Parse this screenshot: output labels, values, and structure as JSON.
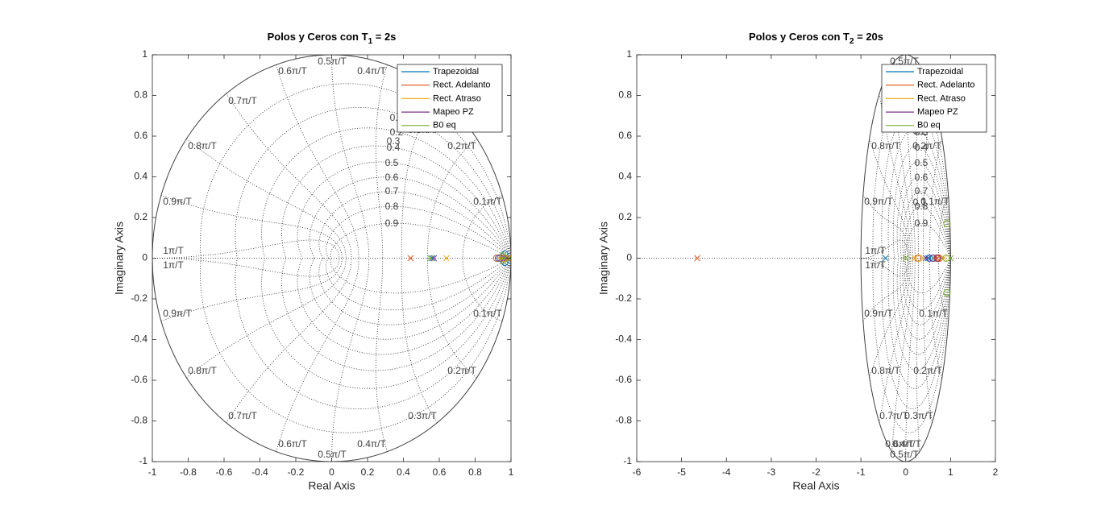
{
  "figure": {
    "background": "#ffffff"
  },
  "legend_colors": {
    "Trapezoidal": "#0072BD",
    "Rect. Adelanto": "#D95319",
    "Rect. Atraso": "#EDB120",
    "Mapeo PZ": "#7E2F8E",
    "B0 eq": "#77AC30"
  },
  "chart_data": [
    {
      "type": "pzmap",
      "title_prefix": "Polos y Ceros con T",
      "title_subscript": "1",
      "title_suffix": " = 2s",
      "xlabel": "Real Axis",
      "ylabel": "Imaginary Axis",
      "xlim": [
        -1,
        1
      ],
      "ylim": [
        -1,
        1
      ],
      "xticks": [
        -1,
        -0.8,
        -0.6,
        -0.4,
        -0.2,
        0,
        0.2,
        0.4,
        0.6,
        0.8,
        1
      ],
      "xtick_labels": [
        "-1",
        "-0.8",
        "-0.6",
        "-0.4",
        "-0.2",
        "0",
        "0.2",
        "0.4",
        "0.6",
        "0.8",
        "1"
      ],
      "yticks": [
        -1,
        -0.8,
        -0.6,
        -0.4,
        -0.2,
        0,
        0.2,
        0.4,
        0.6,
        0.8,
        1
      ],
      "ytick_labels": [
        "-1",
        "-0.8",
        "-0.6",
        "-0.4",
        "-0.2",
        "0",
        "0.2",
        "0.4",
        "0.6",
        "0.8",
        "1"
      ],
      "grid": true,
      "zeta_values": [
        0.1,
        0.2,
        0.3,
        0.4,
        0.5,
        0.6,
        0.7,
        0.8,
        0.9
      ],
      "zeta_labels": [
        "0.1",
        "0.2",
        "0.3",
        "0.4",
        "0.5",
        "0.6",
        "0.7",
        "0.8",
        "0.9"
      ],
      "wn_values": [
        0.1,
        0.2,
        0.3,
        0.4,
        0.5,
        0.6,
        0.7,
        0.8,
        0.9,
        1.0
      ],
      "wn_labels": [
        "0.1π/T",
        "0.2π/T",
        "0.3π/T",
        "0.4π/T",
        "0.5π/T",
        "0.6π/T",
        "0.7π/T",
        "0.8π/T",
        "0.9π/T",
        "1π/T"
      ],
      "legend_location": "top-right",
      "legend": [
        "Trapezoidal",
        "Rect. Adelanto",
        "Rect. Atraso",
        "Mapeo PZ",
        "B0 eq"
      ],
      "series": [
        {
          "name": "Trapezoidal",
          "poles": [
            [
              0.56,
              0
            ],
            [
              0.97,
              0.01
            ],
            [
              0.97,
              -0.01
            ]
          ],
          "zeros": [
            [
              0.93,
              0
            ],
            [
              0.965,
              0.02
            ],
            [
              0.965,
              -0.02
            ]
          ]
        },
        {
          "name": "Rect. Adelanto",
          "poles": [
            [
              0.44,
              0
            ],
            [
              0.98,
              0
            ]
          ],
          "zeros": [
            [
              0.92,
              0
            ],
            [
              0.96,
              0
            ]
          ]
        },
        {
          "name": "Rect. Atraso",
          "poles": [
            [
              0.64,
              0
            ],
            [
              0.985,
              0
            ]
          ],
          "zeros": [
            [
              0.95,
              0
            ],
            [
              0.97,
              0
            ]
          ]
        },
        {
          "name": "Mapeo PZ",
          "poles": [
            [
              0.57,
              0
            ],
            [
              0.975,
              0
            ]
          ],
          "zeros": [
            [
              0.94,
              0
            ]
          ]
        },
        {
          "name": "B0 eq",
          "poles": [
            [
              0.55,
              0
            ],
            [
              0.99,
              0
            ]
          ],
          "zeros": [
            [
              0.955,
              0.012
            ],
            [
              0.955,
              -0.012
            ]
          ]
        }
      ]
    },
    {
      "type": "pzmap",
      "title_prefix": "Polos y Ceros con T",
      "title_subscript": "2",
      "title_suffix": " = 20s",
      "xlabel": "Real Axis",
      "ylabel": "Imaginary Axis",
      "xlim": [
        -6,
        2
      ],
      "ylim": [
        -1,
        1
      ],
      "xticks": [
        -6,
        -5,
        -4,
        -3,
        -2,
        -1,
        0,
        1,
        2
      ],
      "xtick_labels": [
        "-6",
        "-5",
        "-4",
        "-3",
        "-2",
        "-1",
        "0",
        "1",
        "2"
      ],
      "yticks": [
        -1,
        -0.8,
        -0.6,
        -0.4,
        -0.2,
        0,
        0.2,
        0.4,
        0.6,
        0.8,
        1
      ],
      "ytick_labels": [
        "-1",
        "-0.8",
        "-0.6",
        "-0.4",
        "-0.2",
        "0",
        "0.2",
        "0.4",
        "0.6",
        "0.8",
        "1"
      ],
      "grid": true,
      "zeta_values": [
        0.1,
        0.2,
        0.3,
        0.4,
        0.5,
        0.6,
        0.7,
        0.8,
        0.9
      ],
      "zeta_labels": [
        "0.1",
        "0.2",
        "0.3",
        "0.4",
        "0.5",
        "0.6",
        "0.7",
        "0.8",
        "0.9"
      ],
      "wn_values": [
        0.1,
        0.2,
        0.3,
        0.4,
        0.5,
        0.6,
        0.7,
        0.8,
        0.9,
        1.0
      ],
      "wn_labels": [
        "0.1π/T",
        "0.2π/T",
        "0.3π/T",
        "0.4π/T",
        "0.5π/T",
        "0.6π/T",
        "0.7π/T",
        "0.8π/T",
        "0.9π/T",
        "1π/T"
      ],
      "legend_location": "top-right",
      "legend": [
        "Trapezoidal",
        "Rect. Adelanto",
        "Rect. Atraso",
        "Mapeo PZ",
        "B0 eq"
      ],
      "series": [
        {
          "name": "Trapezoidal",
          "poles": [
            [
              -0.45,
              0
            ],
            [
              0.5,
              0
            ]
          ],
          "zeros": [
            [
              0.52,
              0
            ],
            [
              0.62,
              0
            ]
          ]
        },
        {
          "name": "Rect. Adelanto",
          "poles": [
            [
              -4.65,
              0
            ],
            [
              0.7,
              0
            ]
          ],
          "zeros": [
            [
              0.27,
              0
            ],
            [
              0.72,
              0
            ],
            [
              0.75,
              0
            ]
          ]
        },
        {
          "name": "Rect. Atraso",
          "poles": [
            [
              0.2,
              0
            ],
            [
              0.85,
              0
            ]
          ],
          "zeros": [
            [
              0.3,
              0
            ],
            [
              0.68,
              0
            ]
          ]
        },
        {
          "name": "Mapeo PZ",
          "poles": [
            [
              0.45,
              0
            ]
          ],
          "zeros": [
            [
              0.6,
              0
            ],
            [
              0.7,
              0
            ]
          ]
        },
        {
          "name": "B0 eq",
          "poles": [
            [
              0.0,
              0
            ],
            [
              1.0,
              0
            ]
          ],
          "zeros": [
            [
              0.92,
              0.17
            ],
            [
              0.92,
              -0.17
            ],
            [
              0.9,
              0
            ]
          ]
        }
      ]
    }
  ]
}
